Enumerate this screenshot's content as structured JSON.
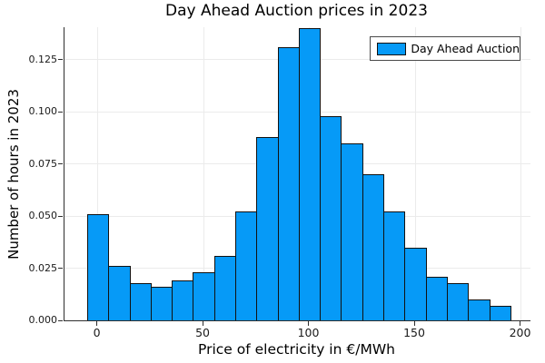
{
  "figure": {
    "title": "Day Ahead Auction prices in 2023",
    "background_color": "#ffffff"
  },
  "chart_data": {
    "type": "bar",
    "subtype": "histogram",
    "title": "Day Ahead Auction prices in 2023",
    "xlabel": "Price of electricity in €/MWh",
    "ylabel": "Number of hours in 2023",
    "bin_edges": [
      -5,
      5,
      15,
      25,
      35,
      45,
      55,
      65,
      75,
      85,
      95,
      105,
      115,
      125,
      135,
      145,
      155,
      165,
      175,
      185,
      195
    ],
    "values": [
      0.051,
      0.026,
      0.018,
      0.016,
      0.019,
      0.023,
      0.031,
      0.052,
      0.088,
      0.131,
      0.14,
      0.098,
      0.085,
      0.07,
      0.052,
      0.035,
      0.021,
      0.018,
      0.01,
      0.007
    ],
    "series_name": "Day Ahead Auction",
    "x_ticks": [
      0,
      50,
      100,
      150,
      200
    ],
    "x_tick_labels": [
      "0",
      "50",
      "100",
      "150",
      "200"
    ],
    "y_ticks": [
      0.0,
      0.025,
      0.05,
      0.075,
      0.1,
      0.125
    ],
    "y_tick_labels": [
      "0.000",
      "0.025",
      "0.050",
      "0.075",
      "0.100",
      "0.125"
    ],
    "xlim": [
      -15.7,
      204.5
    ],
    "ylim": [
      0,
      0.1405
    ],
    "grid": true,
    "legend_position": "top-right",
    "colors": {
      "bar_fill": "#069af7",
      "bar_edge": "#111111",
      "grid": "#ebebeb",
      "axis": "#2e2e2e",
      "text": "#000000"
    }
  },
  "legend": {
    "entries": [
      {
        "label": "Day Ahead Auction",
        "swatch_color": "#069af7"
      }
    ]
  }
}
